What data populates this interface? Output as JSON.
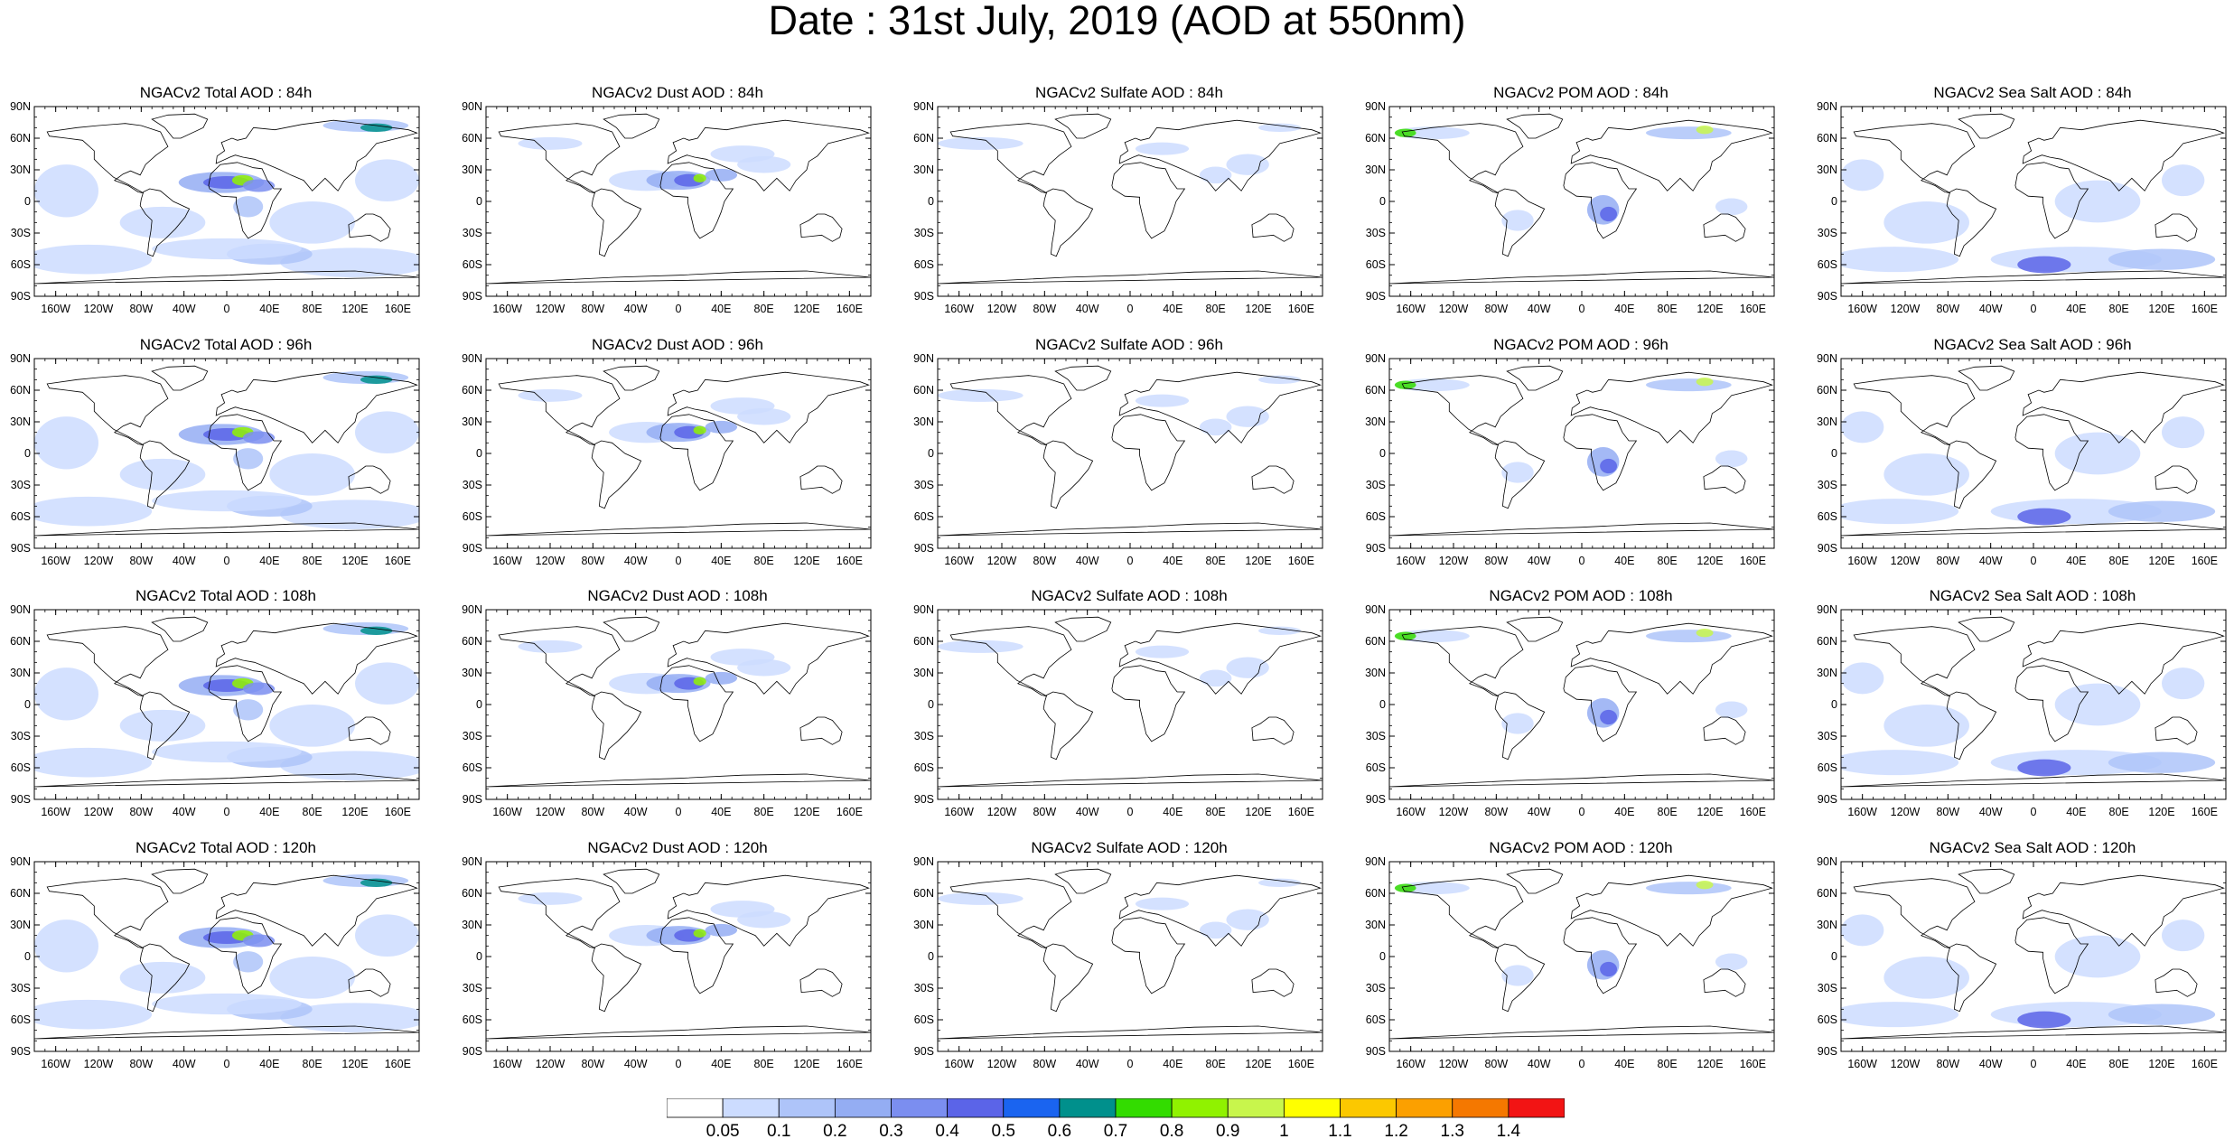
{
  "title": "Date : 31st July, 2019 (AOD at 550nm)",
  "panels": [
    {
      "title": "NGACv2 Total AOD : 84h",
      "species": "total"
    },
    {
      "title": "NGACv2 Dust AOD : 84h",
      "species": "dust"
    },
    {
      "title": "NGACv2 Sulfate AOD : 84h",
      "species": "sulfate"
    },
    {
      "title": "NGACv2 POM AOD : 84h",
      "species": "pom"
    },
    {
      "title": "NGACv2 Sea Salt AOD : 84h",
      "species": "seasalt"
    },
    {
      "title": "NGACv2 Total AOD : 96h",
      "species": "total"
    },
    {
      "title": "NGACv2 Dust AOD : 96h",
      "species": "dust"
    },
    {
      "title": "NGACv2 Sulfate AOD : 96h",
      "species": "sulfate"
    },
    {
      "title": "NGACv2 POM AOD : 96h",
      "species": "pom"
    },
    {
      "title": "NGACv2 Sea Salt AOD : 96h",
      "species": "seasalt"
    },
    {
      "title": "NGACv2 Total AOD : 108h",
      "species": "total"
    },
    {
      "title": "NGACv2 Dust AOD : 108h",
      "species": "dust"
    },
    {
      "title": "NGACv2 Sulfate AOD : 108h",
      "species": "sulfate"
    },
    {
      "title": "NGACv2 POM AOD : 108h",
      "species": "pom"
    },
    {
      "title": "NGACv2 Sea Salt AOD : 108h",
      "species": "seasalt"
    },
    {
      "title": "NGACv2 Total AOD : 120h",
      "species": "total"
    },
    {
      "title": "NGACv2 Dust AOD : 120h",
      "species": "dust"
    },
    {
      "title": "NGACv2 Sulfate AOD : 120h",
      "species": "sulfate"
    },
    {
      "title": "NGACv2 POM AOD : 120h",
      "species": "pom"
    },
    {
      "title": "NGACv2 Sea Salt  AOD : 120h",
      "species": "seasalt"
    }
  ],
  "axes": {
    "lat_labels": [
      "90N",
      "60N",
      "30N",
      "0",
      "30S",
      "60S",
      "90S"
    ],
    "lon_labels": [
      "160W",
      "120W",
      "80W",
      "40W",
      "0",
      "40E",
      "80E",
      "120E",
      "160E"
    ]
  },
  "colorbar": {
    "labels": [
      "0.05",
      "0.1",
      "0.2",
      "0.3",
      "0.4",
      "0.5",
      "0.6",
      "0.7",
      "0.8",
      "0.9",
      "1",
      "1.1",
      "1.2",
      "1.3",
      "1.4"
    ],
    "colors": [
      "#ffffff",
      "#ccdcff",
      "#aec4f9",
      "#94adf3",
      "#7b8ef0",
      "#5b64e8",
      "#1a64f0",
      "#00908c",
      "#33dc00",
      "#90f200",
      "#c8f64c",
      "#ffff00",
      "#fcc800",
      "#fca000",
      "#f57800",
      "#f21414"
    ]
  }
}
